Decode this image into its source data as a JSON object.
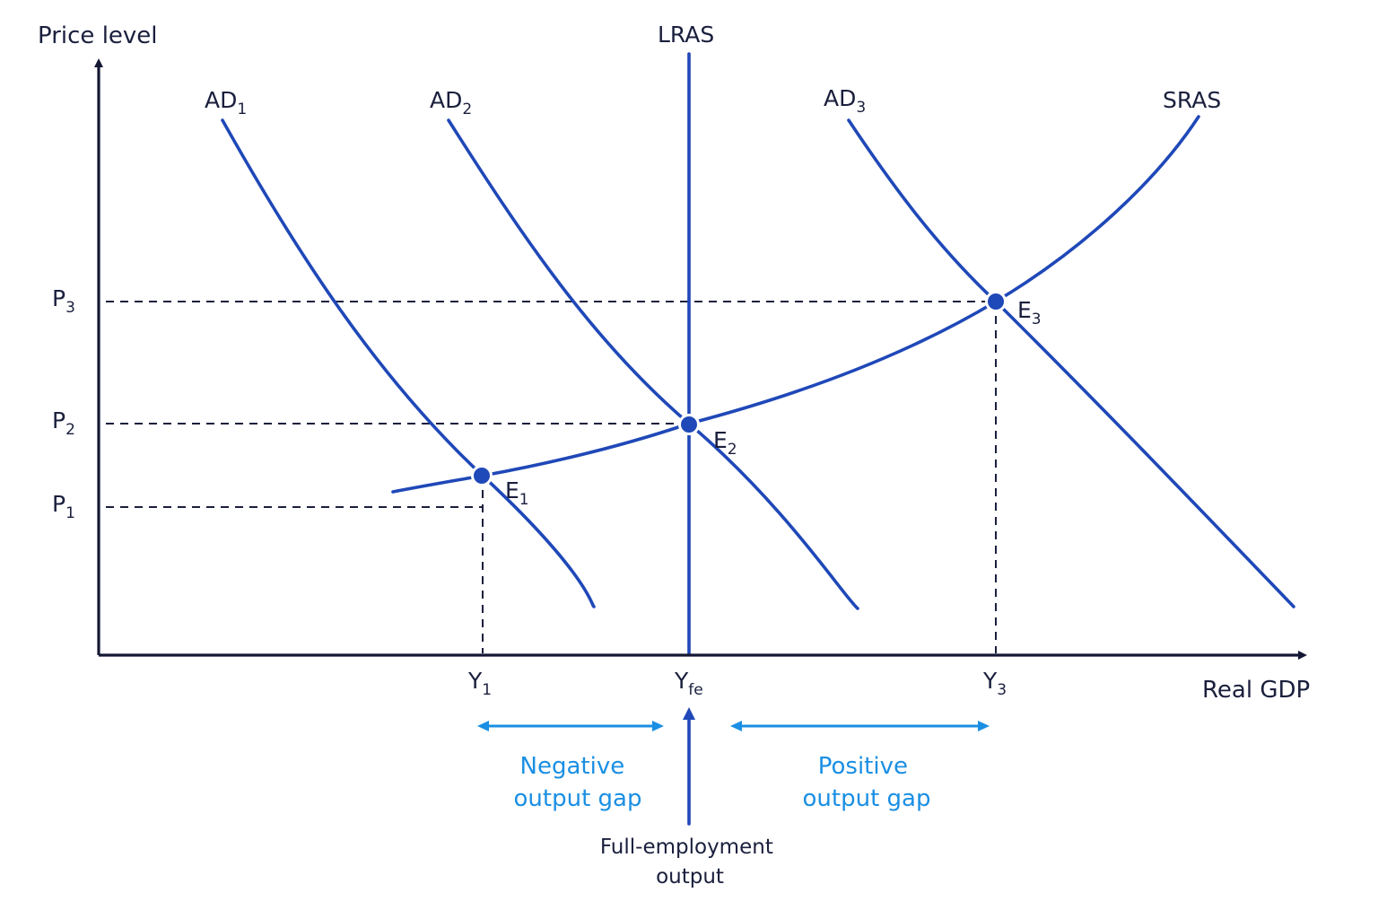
{
  "axes": {
    "y_title": "Price level",
    "x_title": "Real GDP"
  },
  "curves": {
    "lras": "LRAS",
    "sras": "SRAS",
    "ad1": {
      "base": "AD",
      "sub": "1"
    },
    "ad2": {
      "base": "AD",
      "sub": "2"
    },
    "ad3": {
      "base": "AD",
      "sub": "3"
    }
  },
  "price_levels": {
    "p1": {
      "base": "P",
      "sub": "1"
    },
    "p2": {
      "base": "P",
      "sub": "2"
    },
    "p3": {
      "base": "P",
      "sub": "3"
    }
  },
  "outputs": {
    "y1": {
      "base": "Y",
      "sub": "1"
    },
    "yfe": {
      "base": "Y",
      "sub": "fe"
    },
    "y3": {
      "base": "Y",
      "sub": "3"
    }
  },
  "equilibria": {
    "e1": {
      "base": "E",
      "sub": "1"
    },
    "e2": {
      "base": "E",
      "sub": "2"
    },
    "e3": {
      "base": "E",
      "sub": "3"
    }
  },
  "annotations": {
    "negative_gap": {
      "line1": "Negative",
      "line2": "output gap"
    },
    "positive_gap": {
      "line1": "Positive",
      "line2": "output gap"
    },
    "full_employment": {
      "line1": "Full-employment",
      "line2": "output"
    }
  },
  "colors": {
    "curves": "#1f48b8",
    "axes": "#141833",
    "gap_annotations": "#1a8fe3",
    "text": "#1a1f3d"
  }
}
